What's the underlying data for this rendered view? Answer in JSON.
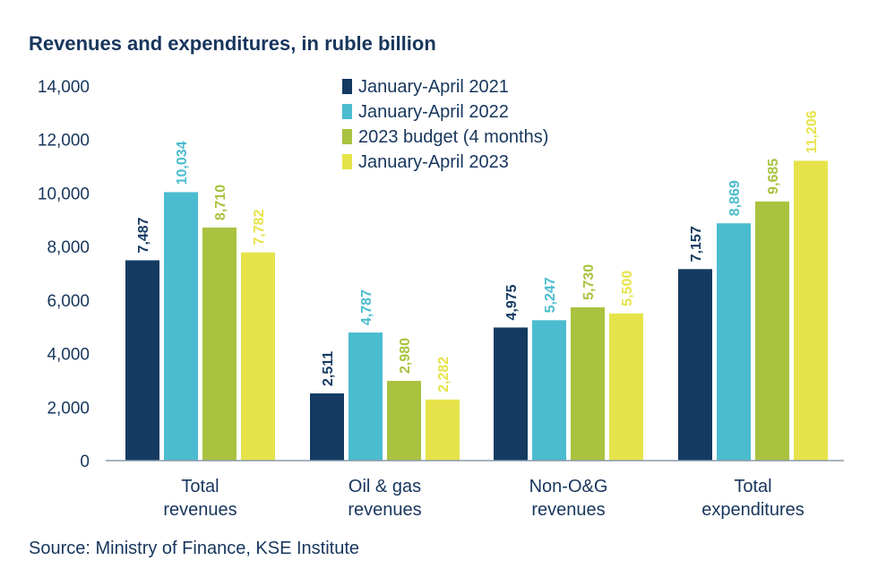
{
  "header": {
    "title": "Revenues and expenditures, in ruble billion"
  },
  "footer": {
    "source": "Source: Ministry of Finance, KSE Institute"
  },
  "chart_data": {
    "type": "bar",
    "title": "Revenues and expenditures, in ruble billion",
    "xlabel": "",
    "ylabel": "",
    "ylim": [
      0,
      14000
    ],
    "yticks": [
      0,
      2000,
      4000,
      6000,
      8000,
      10000,
      12000,
      14000
    ],
    "ytick_labels": [
      "0",
      "2,000",
      "4,000",
      "6,000",
      "8,000",
      "10,000",
      "12,000",
      "14,000"
    ],
    "grid": false,
    "legend_position": "top-center",
    "categories": [
      [
        "Total",
        "revenues"
      ],
      [
        "Oil & gas",
        "revenues"
      ],
      [
        "Non-O&G",
        "revenues"
      ],
      [
        "Total",
        "expenditures"
      ]
    ],
    "series": [
      {
        "name": "January-April 2021",
        "color": "#143a61",
        "values": [
          7487,
          2511,
          4975,
          7157
        ],
        "labels": [
          "7,487",
          "2,511",
          "4,975",
          "7,157"
        ]
      },
      {
        "name": "January-April 2022",
        "color": "#4bbccf",
        "values": [
          10034,
          4787,
          5247,
          8869
        ],
        "labels": [
          "10,034",
          "4,787",
          "5,247",
          "8,869"
        ]
      },
      {
        "name": "2023 budget (4 months)",
        "color": "#a9c23f",
        "values": [
          8710,
          2980,
          5730,
          9685
        ],
        "labels": [
          "8,710",
          "2,980",
          "5,730",
          "9,685"
        ]
      },
      {
        "name": "January-April 2023",
        "color": "#e6e34a",
        "values": [
          7782,
          2282,
          5500,
          11206
        ],
        "labels": [
          "7,782",
          "2,282",
          "5,500",
          "11,206"
        ]
      }
    ]
  }
}
